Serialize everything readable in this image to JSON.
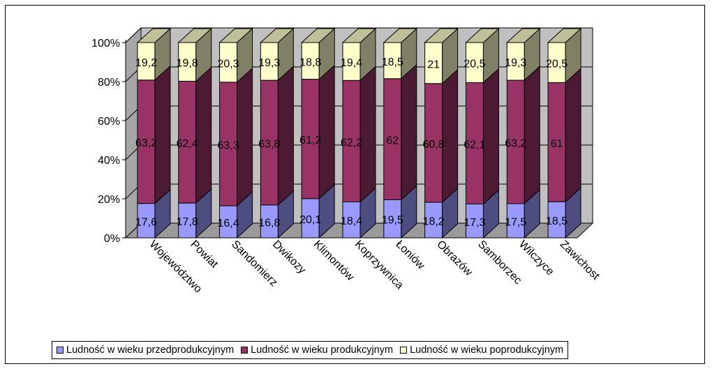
{
  "chart_data": {
    "type": "bar",
    "stacked": "percent",
    "three_d": true,
    "categories": [
      "Województwo",
      "Powiat",
      "Sandomierz",
      "Dwikozy",
      "Klimontów",
      "Koprzywnica",
      "Łoniów",
      "Obrazów",
      "Samborzec",
      "Wilczyce",
      "Zawichost"
    ],
    "series": [
      {
        "name": "Ludność w wieku przedprodukcyjnym",
        "values": [
          17.6,
          17.8,
          16.4,
          16.8,
          20.1,
          18.4,
          19.5,
          18.2,
          17.3,
          17.5,
          18.5
        ],
        "labels": [
          "17,6",
          "17,8",
          "16,4",
          "16,8",
          "20,1",
          "18,4",
          "19,5",
          "18,2",
          "17,3",
          "17,5",
          "18,5"
        ],
        "color": "#9999FF"
      },
      {
        "name": "Ludność w wieku produkcyjnym",
        "values": [
          63.2,
          62.4,
          63.3,
          63.8,
          61.2,
          62.2,
          62,
          60.8,
          62.1,
          63.2,
          61
        ],
        "labels": [
          "63,2",
          "62,4",
          "63,3",
          "63,8",
          "61,2",
          "62,2",
          "62",
          "60,8",
          "62,1",
          "63,2",
          "61"
        ],
        "color": "#993366"
      },
      {
        "name": "Ludność w wieku poprodukcyjnym",
        "values": [
          19.2,
          19.8,
          20.3,
          19.3,
          18.8,
          19.4,
          18.5,
          21,
          20.5,
          19.3,
          20.5
        ],
        "labels": [
          "19,2",
          "19,8",
          "20,3",
          "19,3",
          "18,8",
          "19,4",
          "18,5",
          "21",
          "20,5",
          "19,3",
          "20,5"
        ],
        "color": "#FFFFCC"
      }
    ],
    "yticks": [
      "0%",
      "20%",
      "40%",
      "60%",
      "80%",
      "100%"
    ],
    "ylim": [
      0,
      100
    ],
    "grid": true,
    "legend": "bottom",
    "wall_color": "#C0C0C0"
  }
}
